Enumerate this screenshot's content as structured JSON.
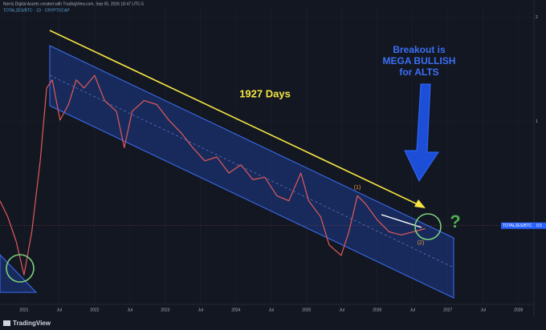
{
  "chart_data": {
    "type": "line",
    "header": "Norris Digital Assets created with TradingView.com, Sep 05, 2026 18:47 UTC-5",
    "symbol_line": "TOTAL2ES/BTC · 1D · CRYPTOCAP",
    "footer": "TradingView",
    "log_scale": true,
    "grid": true,
    "xlim": [
      2020.66,
      2028.22
    ],
    "xticks": [
      {
        "value": 2021,
        "label": "2021"
      },
      {
        "value": 2021.5,
        "label": "Jul"
      },
      {
        "value": 2022,
        "label": "2022"
      },
      {
        "value": 2022.5,
        "label": "Jul"
      },
      {
        "value": 2023,
        "label": "2023"
      },
      {
        "value": 2023.5,
        "label": "Jul"
      },
      {
        "value": 2024,
        "label": "2024"
      },
      {
        "value": 2024.5,
        "label": "Jul"
      },
      {
        "value": 2025,
        "label": "2025"
      },
      {
        "value": 2025.5,
        "label": "Jul"
      },
      {
        "value": 2026,
        "label": "2026"
      },
      {
        "value": 2026.5,
        "label": "Jul"
      },
      {
        "value": 2027,
        "label": "2027"
      },
      {
        "value": 2027.5,
        "label": "Jul"
      },
      {
        "value": 2028,
        "label": "2028"
      }
    ],
    "ylim": [
      0.296,
      2.13
    ],
    "yticks": [
      1,
      2
    ],
    "last_price": 0.5,
    "series": [
      {
        "name": "TOTAL2ES/BTC",
        "color": "#e05a5a",
        "x": [
          2020.66,
          2020.77,
          2020.89,
          2021.0,
          2021.11,
          2021.23,
          2021.32,
          2021.4,
          2021.51,
          2021.63,
          2021.74,
          2021.85,
          2022.0,
          2022.14,
          2022.31,
          2022.42,
          2022.53,
          2022.7,
          2022.88,
          2023.05,
          2023.22,
          2023.39,
          2023.56,
          2023.73,
          2023.9,
          2024.07,
          2024.24,
          2024.41,
          2024.58,
          2024.75,
          2024.92,
          2025.03,
          2025.2,
          2025.32,
          2025.49,
          2025.6,
          2025.72,
          2025.83,
          2026.0,
          2026.17,
          2026.34,
          2026.51,
          2026.68
        ],
        "values": [
          0.59,
          0.53,
          0.45,
          0.36,
          0.48,
          0.77,
          1.25,
          1.32,
          1.01,
          1.12,
          1.32,
          1.25,
          1.36,
          1.15,
          1.07,
          0.84,
          1.07,
          1.15,
          1.12,
          1.01,
          0.93,
          0.84,
          0.77,
          0.79,
          0.71,
          0.75,
          0.68,
          0.69,
          0.61,
          0.59,
          0.71,
          0.59,
          0.53,
          0.44,
          0.41,
          0.48,
          0.61,
          0.58,
          0.52,
          0.48,
          0.47,
          0.48,
          0.49
        ]
      }
    ],
    "annotations": {
      "days": "1927 Days",
      "breakout": [
        "Breakout is",
        "MEGA BULLISH",
        "for ALTS"
      ],
      "wave1": "(1)",
      "wave2": "(2)",
      "question": "?"
    }
  }
}
